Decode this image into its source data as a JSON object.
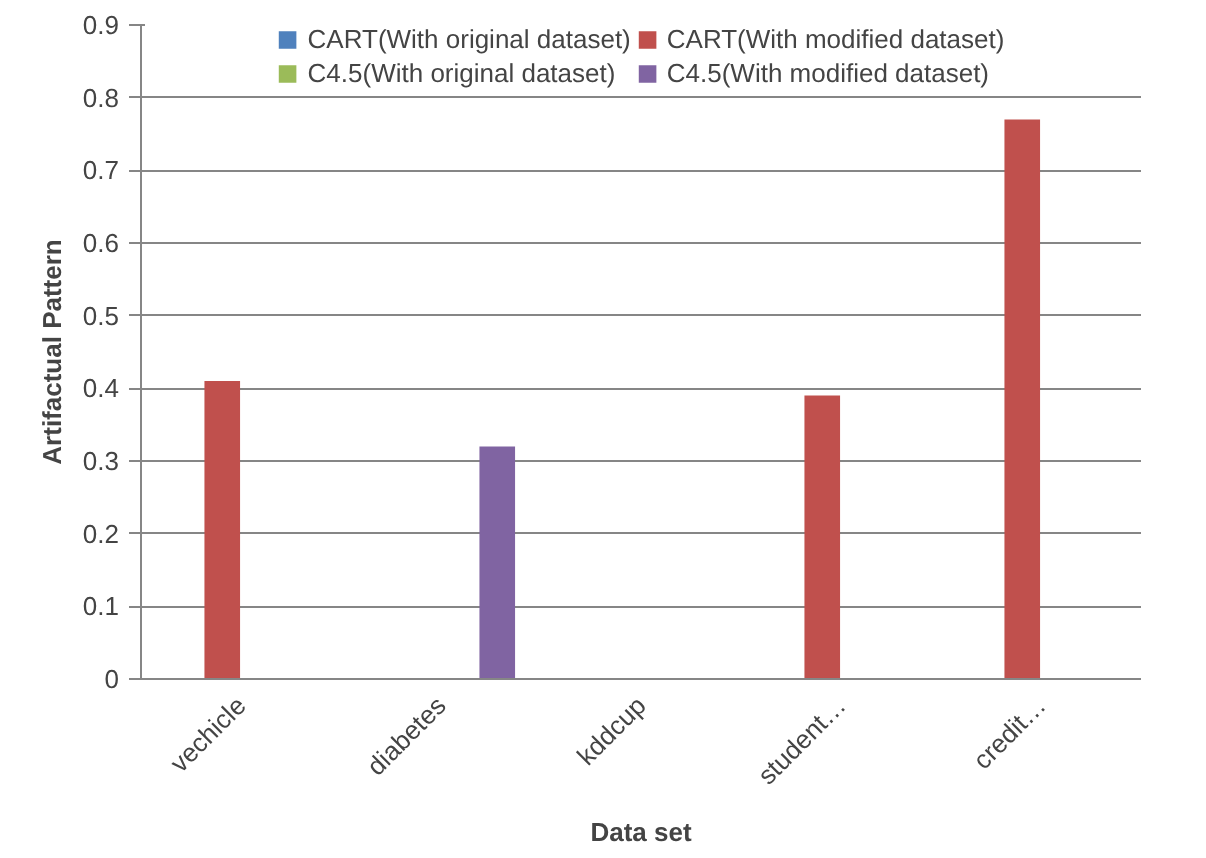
{
  "chart_data": {
    "type": "bar",
    "xlabel": "Data set",
    "ylabel": "Artifactual Pattern",
    "categories": [
      "vechicle",
      "diabetes",
      "kddcup",
      "student…",
      "credit…"
    ],
    "series": [
      {
        "name": "CART(With original dataset)",
        "color": "#4f81bd",
        "values": [
          0,
          0,
          0,
          0,
          0
        ]
      },
      {
        "name": "CART(With modified dataset)",
        "color": "#c0504d",
        "values": [
          0.41,
          0,
          0,
          0.39,
          0.77
        ]
      },
      {
        "name": "C4.5(With original dataset)",
        "color": "#9bbb59",
        "values": [
          0,
          0,
          0,
          0,
          0
        ]
      },
      {
        "name": "C4.5(With modified dataset)",
        "color": "#8064a2",
        "values": [
          0,
          0.32,
          0,
          0,
          0
        ]
      }
    ],
    "ylim": [
      0,
      0.9
    ],
    "yticks": [
      0,
      0.1,
      0.2,
      0.3,
      0.4,
      0.5,
      0.6,
      0.7,
      0.8,
      0.9
    ],
    "grid": "y",
    "legend": "top"
  }
}
